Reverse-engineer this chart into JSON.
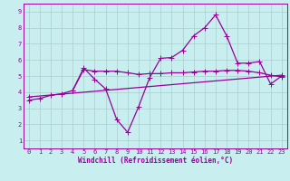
{
  "title": "",
  "xlabel": "Windchill (Refroidissement éolien,°C)",
  "bg_color": "#c8eef0",
  "line_color": "#990099",
  "grid_color": "#aacccc",
  "xlim": [
    -0.5,
    23.5
  ],
  "ylim": [
    0.5,
    9.5
  ],
  "xticks": [
    0,
    1,
    2,
    3,
    4,
    5,
    6,
    7,
    8,
    9,
    10,
    11,
    12,
    13,
    14,
    15,
    16,
    17,
    18,
    19,
    20,
    21,
    22,
    23
  ],
  "yticks": [
    1,
    2,
    3,
    4,
    5,
    6,
    7,
    8,
    9
  ],
  "jagged_x": [
    0,
    1,
    2,
    3,
    4,
    5,
    6,
    7,
    8,
    9,
    10,
    11,
    12,
    13,
    14,
    15,
    16,
    17,
    18,
    19,
    20,
    21,
    22,
    23
  ],
  "jagged_y": [
    3.5,
    3.6,
    3.8,
    3.9,
    4.1,
    5.5,
    4.8,
    4.2,
    2.3,
    1.5,
    3.1,
    4.9,
    6.1,
    6.15,
    6.6,
    7.5,
    8.0,
    8.8,
    7.5,
    5.8,
    5.8,
    5.9,
    4.5,
    5.0
  ],
  "flat_x": [
    4,
    5,
    6,
    7,
    8,
    9,
    10,
    11,
    12,
    13,
    14,
    15,
    16,
    17,
    18,
    19,
    20,
    21,
    22,
    23
  ],
  "flat_y": [
    4.1,
    5.4,
    5.3,
    5.3,
    5.3,
    5.2,
    5.1,
    5.15,
    5.15,
    5.2,
    5.2,
    5.25,
    5.3,
    5.3,
    5.35,
    5.35,
    5.3,
    5.2,
    5.05,
    4.95
  ],
  "trend_x": [
    0,
    23
  ],
  "trend_y": [
    3.7,
    5.05
  ],
  "line_width": 0.9,
  "marker_size": 3.0,
  "font_size_label": 5.5,
  "font_size_tick": 5.0
}
